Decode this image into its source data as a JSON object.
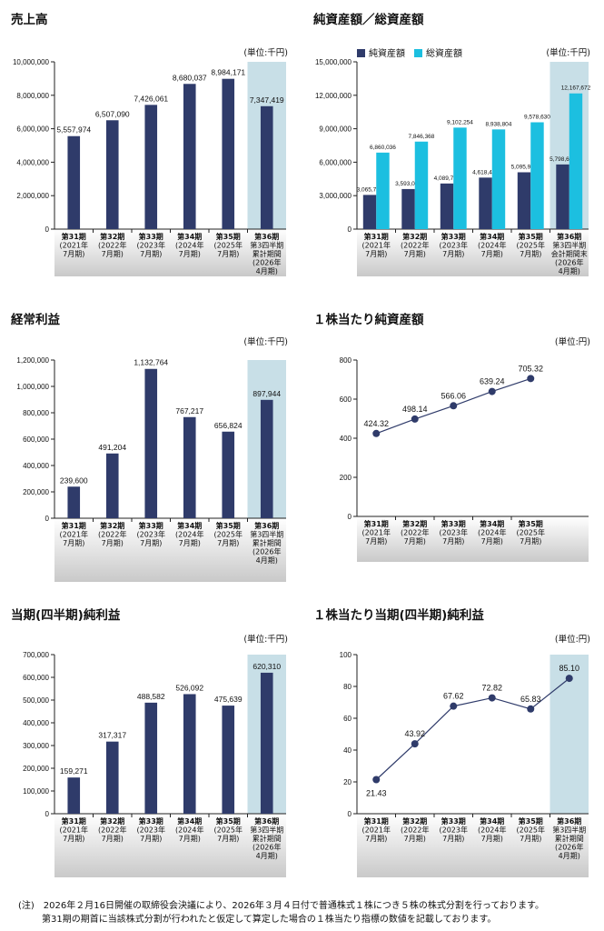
{
  "colors": {
    "navy": "#2f3b6a",
    "cyan": "#1cbfe0",
    "highlight": "#c8dfe7",
    "axis": "#222222"
  },
  "note": {
    "line1": "(注)　2026年２月16日開催の取締役会決議により、2026年３月４日付で普通株式１株につき５株の株式分割を行っております。",
    "line2": "第31期の期首に当該株式分割が行われたと仮定して算定した場合の１株当たり指標の数値を記載しております。"
  },
  "chart_data": [
    {
      "id": "sales",
      "type": "bar",
      "title": "売上高",
      "unit": "(単位:千円)",
      "categories": [
        "第31期\n(2021年\n7月期)",
        "第32期\n(2022年\n7月期)",
        "第33期\n(2023年\n7月期)",
        "第34期\n(2024年\n7月期)",
        "第35期\n(2025年\n7月期)",
        "第36期\n第3四半期\n累計期間\n(2026年\n4月期)"
      ],
      "series": [
        {
          "values": [
            5557974,
            6507090,
            7426061,
            8680037,
            8984171,
            7347419
          ],
          "labels": [
            "5,557,974",
            "6,507,090",
            "7,426,061",
            "8,680,037",
            "8,984,171",
            "7,347,419"
          ]
        }
      ],
      "ylim": [
        0,
        10000000
      ],
      "yticks": [
        0,
        2000000,
        4000000,
        6000000,
        8000000,
        10000000
      ],
      "ytick_labels": [
        "0",
        "2,000,000",
        "4,000,000",
        "6,000,000",
        "8,000,000",
        "10,000,000"
      ],
      "highlight_last": true
    },
    {
      "id": "assets",
      "type": "bar",
      "title": "純資産額／総資産額",
      "unit": "(単位:千円)",
      "legend": [
        "純資産額",
        "総資産額"
      ],
      "categories": [
        "第31期\n(2021年\n7月期)",
        "第32期\n(2022年\n7月期)",
        "第33期\n(2023年\n7月期)",
        "第34期\n(2024年\n7月期)",
        "第35期\n(2025年\n7月期)",
        "第36期\n第3四半期\n会計期間末\n(2026年\n4月期)"
      ],
      "series": [
        {
          "name": "純資産額",
          "values": [
            3065708,
            3593074,
            4089778,
            4618488,
            5095907,
            5798606
          ],
          "labels": [
            "3,065,708",
            "3,593,074",
            "4,089,778",
            "4,618,488",
            "5,095,907",
            "5,798,606"
          ]
        },
        {
          "name": "総資産額",
          "values": [
            6860036,
            7846368,
            9102254,
            8938804,
            9578630,
            12167672
          ],
          "labels": [
            "6,860,036",
            "7,846,368",
            "9,102,254",
            "8,938,804",
            "9,578,630",
            "12,167,672"
          ]
        }
      ],
      "ylim": [
        0,
        15000000
      ],
      "yticks": [
        0,
        3000000,
        6000000,
        9000000,
        12000000,
        15000000
      ],
      "ytick_labels": [
        "0",
        "3,000,000",
        "6,000,000",
        "9,000,000",
        "12,000,000",
        "15,000,000"
      ],
      "highlight_last": true
    },
    {
      "id": "ordinary",
      "type": "bar",
      "title": "経常利益",
      "unit": "(単位:千円)",
      "categories": [
        "第31期\n(2021年\n7月期)",
        "第32期\n(2022年\n7月期)",
        "第33期\n(2023年\n7月期)",
        "第34期\n(2024年\n7月期)",
        "第35期\n(2025年\n7月期)",
        "第36期\n第3四半期\n累計期間\n(2026年\n4月期)"
      ],
      "series": [
        {
          "values": [
            239600,
            491204,
            1132764,
            767217,
            656824,
            897944
          ],
          "labels": [
            "239,600",
            "491,204",
            "1,132,764",
            "767,217",
            "656,824",
            "897,944"
          ]
        }
      ],
      "ylim": [
        0,
        1200000
      ],
      "yticks": [
        0,
        200000,
        400000,
        600000,
        800000,
        1000000,
        1200000
      ],
      "ytick_labels": [
        "0",
        "200,000",
        "400,000",
        "600,000",
        "800,000",
        "1,000,000",
        "1,200,000"
      ],
      "highlight_last": true
    },
    {
      "id": "bps",
      "type": "line",
      "title": "１株当たり純資産額",
      "unit": "(単位:円)",
      "categories": [
        "第31期\n(2021年\n7月期)",
        "第32期\n(2022年\n7月期)",
        "第33期\n(2023年\n7月期)",
        "第34期\n(2024年\n7月期)",
        "第35期\n(2025年\n7月期)"
      ],
      "series": [
        {
          "values": [
            424.32,
            498.14,
            566.06,
            639.24,
            705.32
          ],
          "labels": [
            "424.32",
            "498.14",
            "566.06",
            "639.24",
            "705.32"
          ]
        }
      ],
      "ylim": [
        0,
        800
      ],
      "yticks": [
        0,
        200,
        400,
        600,
        800
      ],
      "ytick_labels": [
        "0",
        "200",
        "400",
        "600",
        "800"
      ],
      "highlight_last": false
    },
    {
      "id": "netincome",
      "type": "bar",
      "title": "当期(四半期)純利益",
      "unit": "(単位:千円)",
      "categories": [
        "第31期\n(2021年\n7月期)",
        "第32期\n(2022年\n7月期)",
        "第33期\n(2023年\n7月期)",
        "第34期\n(2024年\n7月期)",
        "第35期\n(2025年\n7月期)",
        "第36期\n第3四半期\n累計期間\n(2026年\n4月期)"
      ],
      "series": [
        {
          "values": [
            159271,
            317317,
            488582,
            526092,
            475639,
            620310
          ],
          "labels": [
            "159,271",
            "317,317",
            "488,582",
            "526,092",
            "475,639",
            "620,310"
          ]
        }
      ],
      "ylim": [
        0,
        700000
      ],
      "yticks": [
        0,
        100000,
        200000,
        300000,
        400000,
        500000,
        600000,
        700000
      ],
      "ytick_labels": [
        "0",
        "100,000",
        "200,000",
        "300,000",
        "400,000",
        "500,000",
        "600,000",
        "700,000"
      ],
      "highlight_last": true
    },
    {
      "id": "eps",
      "type": "line",
      "title": "１株当たり当期(四半期)純利益",
      "unit": "(単位:円)",
      "categories": [
        "第31期\n(2021年\n7月期)",
        "第32期\n(2022年\n7月期)",
        "第33期\n(2023年\n7月期)",
        "第34期\n(2024年\n7月期)",
        "第35期\n(2025年\n7月期)",
        "第36期\n第3四半期\n累計期間\n(2026年\n4月期)"
      ],
      "series": [
        {
          "values": [
            21.43,
            43.92,
            67.62,
            72.82,
            65.83,
            85.1
          ],
          "labels": [
            "21.43",
            "43.92",
            "67.62",
            "72.82",
            "65.83",
            "85.10"
          ]
        }
      ],
      "ylim": [
        0,
        100
      ],
      "yticks": [
        0,
        20,
        40,
        60,
        80,
        100
      ],
      "ytick_labels": [
        "0",
        "20",
        "40",
        "60",
        "80",
        "100"
      ],
      "highlight_last": true
    }
  ]
}
